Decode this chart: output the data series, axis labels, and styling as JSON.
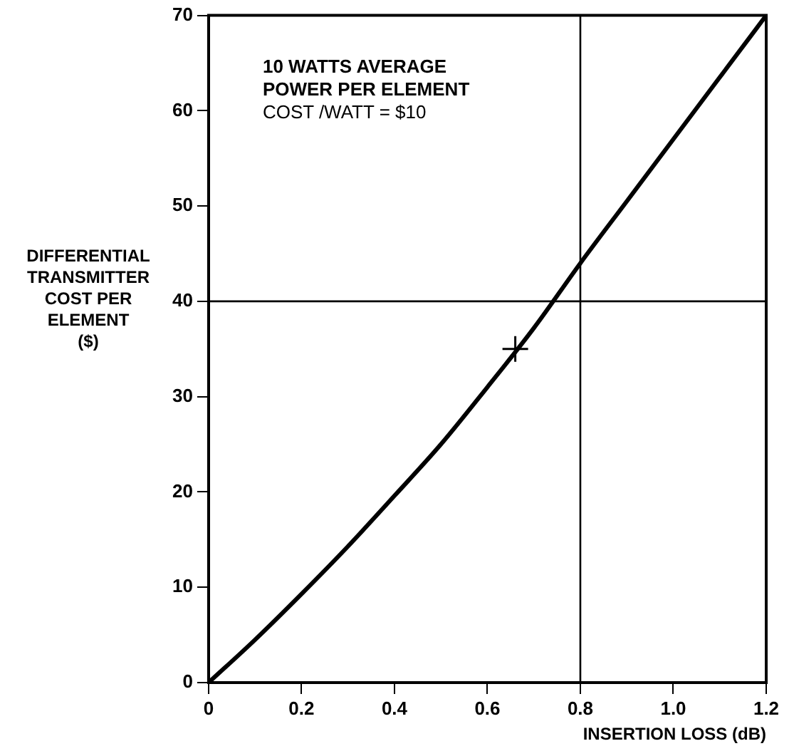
{
  "chart_data": {
    "type": "line",
    "xlabel": "INSERTION LOSS (dB)",
    "ylabel": "DIFFERENTIAL\nTRANSMITTER\nCOST PER\nELEMENT\n($)",
    "annotations": [
      "10 WATTS AVERAGE\nPOWER PER ELEMENT",
      "COST /WATT = $10"
    ],
    "series": [
      {
        "color": "#000000",
        "x": [
          0,
          0.1,
          0.2,
          0.3,
          0.4,
          0.5,
          0.6,
          0.7,
          0.8,
          0.9,
          1.0,
          1.1,
          1.2
        ],
        "values": [
          0,
          4.5,
          9.3,
          14.3,
          19.6,
          25,
          31,
          37.2,
          44,
          50.5,
          57,
          63.5,
          70
        ],
        "marker": "none"
      },
      {
        "type": "scatter",
        "color": "#000000",
        "x": [
          0.66
        ],
        "values": [
          35
        ],
        "marker": "cross"
      }
    ],
    "xlim": [
      0,
      1.2
    ],
    "xticks": [
      0,
      0.2,
      0.4,
      0.6,
      {
        "value": 0.8,
        "label": "0.8"
      },
      {
        "value": 1.0,
        "label": "1.0"
      },
      1.2
    ],
    "ylim": [
      0,
      70
    ],
    "yticks": [
      0,
      10,
      20,
      30,
      40,
      50,
      60,
      70
    ],
    "ref_lines": [
      {
        "axis": "x",
        "value": 0.8,
        "color": "#000000"
      },
      {
        "axis": "y",
        "value": 40,
        "color": "#000000"
      }
    ],
    "grid": false,
    "legend": false
  }
}
